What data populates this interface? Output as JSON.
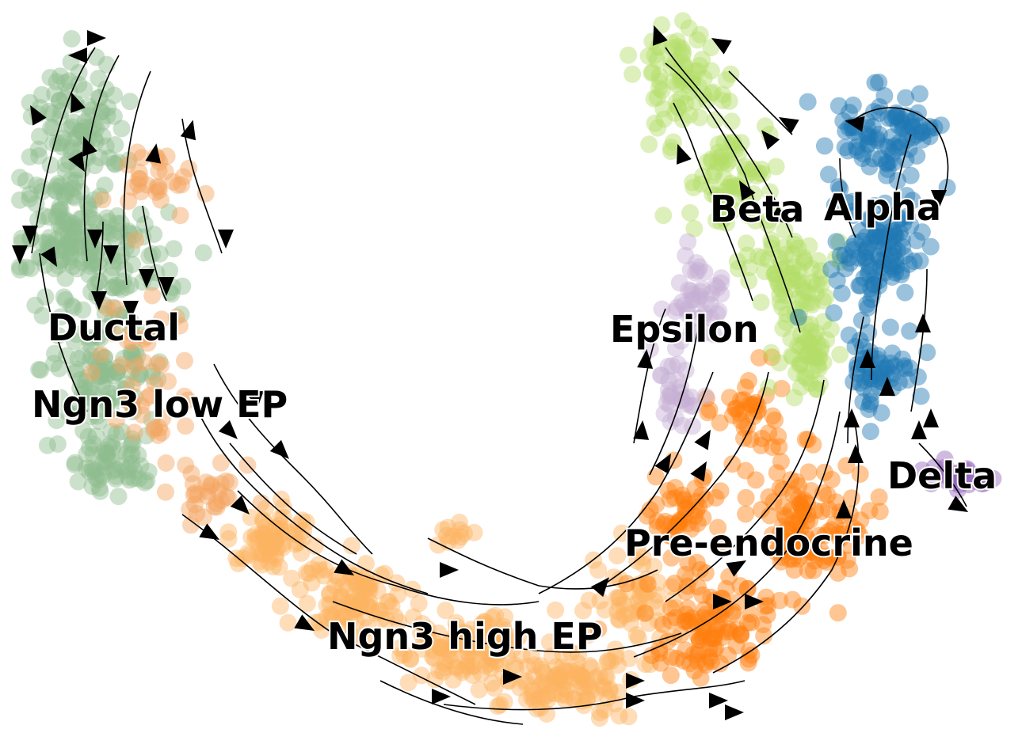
{
  "chart_data": {
    "type": "scatter",
    "title": "",
    "xlabel": "",
    "ylabel": "",
    "grid": false,
    "axes_visible": false,
    "legend": "on data",
    "overlay": "velocity streamlines with arrowheads",
    "clusters": [
      {
        "name": "Ductal",
        "color": "#8fbc8f"
      },
      {
        "name": "Ngn3 low EP",
        "color": "#f4a460"
      },
      {
        "name": "Ngn3 high EP",
        "color": "#fdb462"
      },
      {
        "name": "Pre-endocrine",
        "color": "#ff7f0e"
      },
      {
        "name": "Beta",
        "color": "#b3de69"
      },
      {
        "name": "Alpha",
        "color": "#1f77b4"
      },
      {
        "name": "Epsilon",
        "color": "#c5b0d5"
      },
      {
        "name": "Delta",
        "color": "#9467bd"
      }
    ]
  }
}
